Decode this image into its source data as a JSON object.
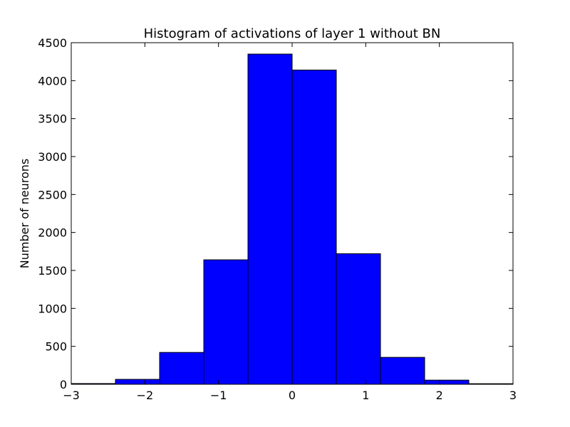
{
  "chart_data": {
    "type": "bar",
    "subtype": "histogram",
    "title": "Histogram of activations of layer 1  without BN",
    "xlabel": "",
    "ylabel": "Number of neurons",
    "xlim": [
      -3,
      3
    ],
    "ylim": [
      0,
      4500
    ],
    "bin_edges": [
      -3.0,
      -2.4,
      -1.8,
      -1.2,
      -0.6,
      0.0,
      0.6,
      1.2,
      1.8,
      2.4,
      3.0
    ],
    "counts": [
      10,
      65,
      420,
      1640,
      4350,
      4140,
      1720,
      355,
      55,
      8
    ],
    "xticks": [
      -3,
      -2,
      -1,
      0,
      1,
      2,
      3
    ],
    "xtick_labels": [
      "−3",
      "−2",
      "−1",
      "0",
      "1",
      "2",
      "3"
    ],
    "yticks": [
      0,
      500,
      1000,
      1500,
      2000,
      2500,
      3000,
      3500,
      4000,
      4500
    ],
    "ytick_labels": [
      "0",
      "500",
      "1000",
      "1500",
      "2000",
      "2500",
      "3000",
      "3500",
      "4000",
      "4500"
    ],
    "grid": false,
    "legend": "none",
    "colors": {
      "bar_fill": "#0000ff",
      "bar_edge": "#000000",
      "axes": "#000000"
    }
  }
}
